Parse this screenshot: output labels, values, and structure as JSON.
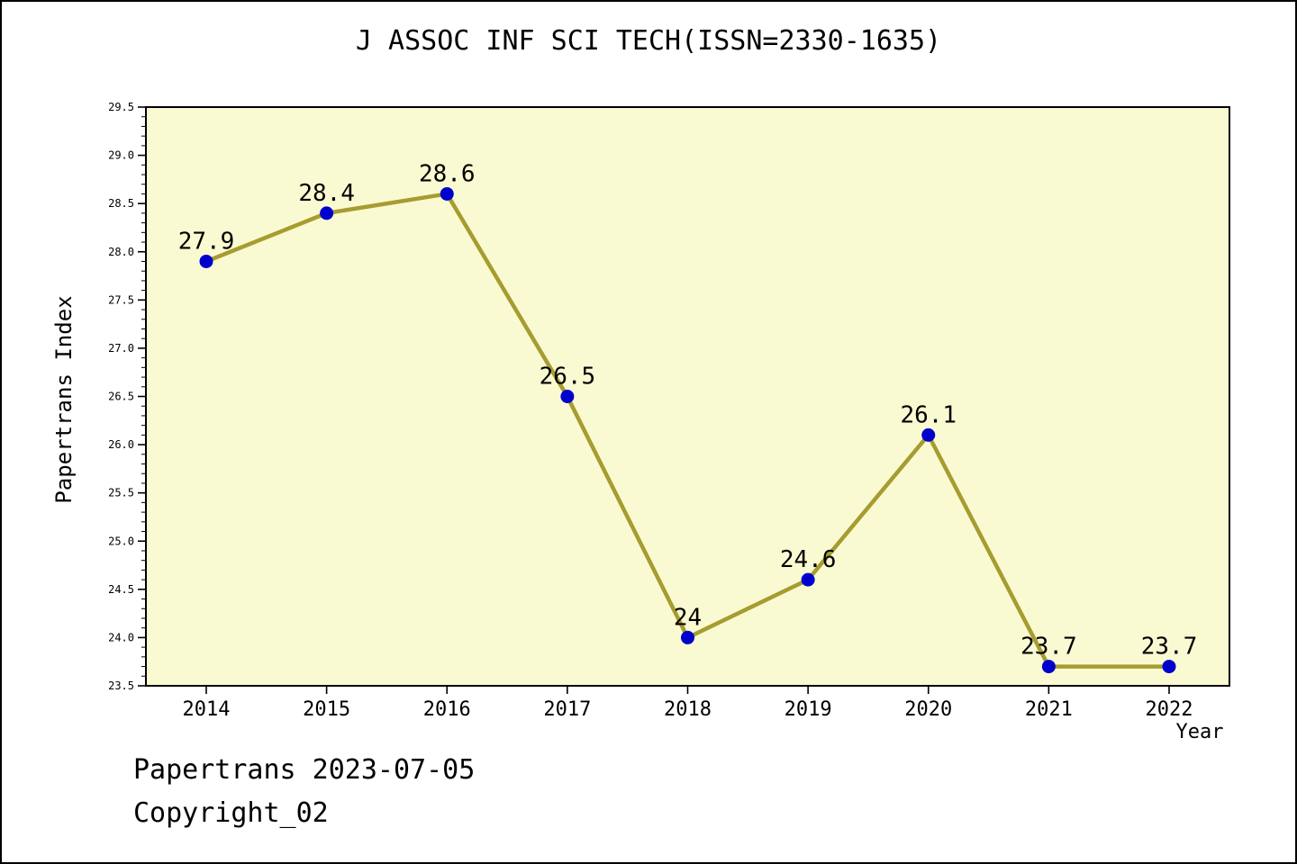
{
  "chart_data": {
    "type": "line",
    "title": "J ASSOC INF SCI TECH(ISSN=2330-1635)",
    "xlabel": "Year",
    "ylabel": "Papertrans Index",
    "x": [
      2014,
      2015,
      2016,
      2017,
      2018,
      2019,
      2020,
      2021,
      2022
    ],
    "values": [
      27.9,
      28.4,
      28.6,
      26.5,
      24,
      24.6,
      26.1,
      23.7,
      23.7
    ],
    "point_labels": [
      "27.9",
      "28.4",
      "28.6",
      "26.5",
      "24",
      "24.6",
      "26.1",
      "23.7",
      "23.7"
    ],
    "ylim": [
      23.5,
      29.5
    ],
    "ytick_step": 0.5,
    "yminor_step": 0.1,
    "ytick_labels": [
      "23.5",
      "24.0",
      "24.5",
      "25.0",
      "25.5",
      "26.0",
      "26.5",
      "27.0",
      "27.5",
      "28.0",
      "28.5",
      "29.0",
      "29.5"
    ],
    "grid": false,
    "legend": null,
    "colors": {
      "plot_background": "#FAFAD2",
      "line": "#A69C30",
      "marker": "#0000CD",
      "axis": "#000000",
      "label_text": "#000000"
    }
  },
  "footer": {
    "line1": "Papertrans 2023-07-05",
    "line2": "Copyright_02"
  }
}
